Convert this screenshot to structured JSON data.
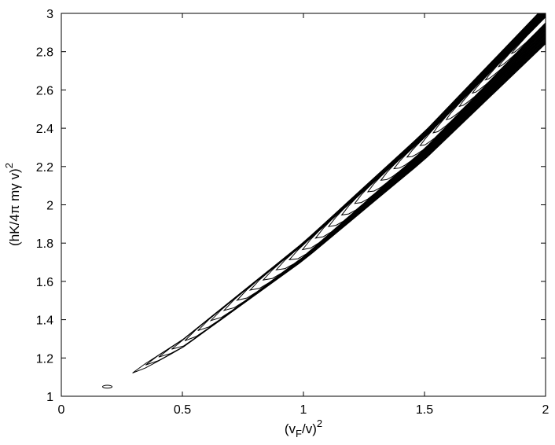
{
  "chart_data": {
    "type": "contour",
    "title": "",
    "xlabel": {
      "base": "(v",
      "sub": "F",
      "after": "/v)",
      "sup": "2"
    },
    "ylabel": {
      "base": "(hK/4π mγ v)",
      "sup": "2"
    },
    "xlim": [
      0,
      2
    ],
    "ylim": [
      1,
      3
    ],
    "xticks": [
      0,
      0.5,
      1,
      1.5,
      2
    ],
    "xtick_labels": [
      "0",
      "0.5",
      "1",
      "1.5",
      "2"
    ],
    "yticks": [
      1,
      1.2,
      1.4,
      1.6,
      1.8,
      2,
      2.2,
      2.4,
      2.6,
      2.8,
      3
    ],
    "ytick_labels": [
      "1",
      "1.2",
      "1.4",
      "1.6",
      "1.8",
      "2",
      "2.2",
      "2.4",
      "2.6",
      "2.8",
      "3"
    ],
    "grid": false,
    "line_color": "#000000",
    "contour_levels": 30,
    "ridge": {
      "x": [
        0.24,
        0.5,
        1.0,
        1.5,
        2.0
      ],
      "y": [
        1.08,
        1.28,
        1.77,
        2.33,
        2.97
      ]
    },
    "island": {
      "x": 0.19,
      "y": 1.05
    }
  }
}
